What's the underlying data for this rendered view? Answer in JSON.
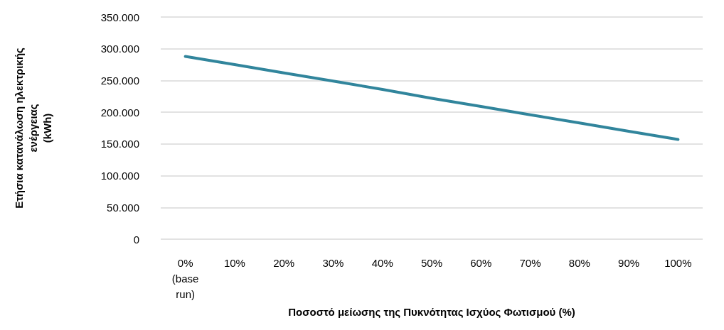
{
  "chart_data": {
    "type": "line",
    "xlabel": "Ποσοστό μείωσης της Πυκνότητας Ισχύος Φωτισμού (%)",
    "ylabel": "Ετήσια κατανάλωση ηλεκτρικής\nενέργειας\n(kWh)",
    "categories": [
      "0%\n(base\nrun)",
      "10%",
      "20%",
      "30%",
      "40%",
      "50%",
      "60%",
      "70%",
      "80%",
      "90%",
      "100%"
    ],
    "series": [
      {
        "color": "#31859c",
        "values": [
          288000,
          275000,
          262000,
          249000,
          236000,
          222000,
          209000,
          196000,
          183000,
          170000,
          157000
        ]
      }
    ],
    "ylim": [
      0,
      350000
    ],
    "yticks": [
      {
        "value": 0,
        "label": "0"
      },
      {
        "value": 50000,
        "label": "50.000"
      },
      {
        "value": 100000,
        "label": "100.000"
      },
      {
        "value": 150000,
        "label": "150.000"
      },
      {
        "value": 200000,
        "label": "200.000"
      },
      {
        "value": 250000,
        "label": "250.000"
      },
      {
        "value": 300000,
        "label": "300.000"
      },
      {
        "value": 350000,
        "label": "350.000"
      }
    ],
    "grid": "y",
    "marker": "none",
    "line_style": "solid"
  }
}
